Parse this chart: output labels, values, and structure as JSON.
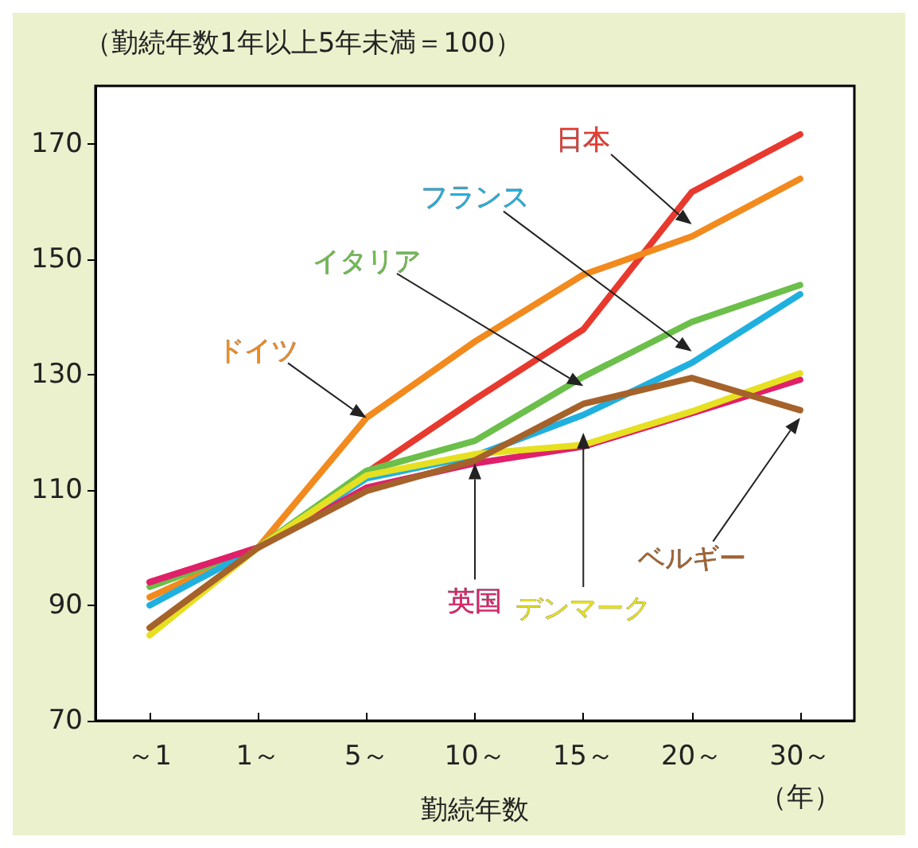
{
  "chart_data": {
    "type": "line",
    "title": "（勤続年数1年以上5年未満＝100）",
    "xlabel": "勤続年数",
    "annotations": [
      "（年）"
    ],
    "categories": [
      "～1",
      "1～",
      "5～",
      "10～",
      "15～",
      "20～",
      "30～"
    ],
    "ylim": [
      70,
      180
    ],
    "yticks": [
      70,
      90,
      110,
      130,
      150,
      170
    ],
    "grid": false,
    "legend": false,
    "marker": "none",
    "line_style": "solid",
    "series": [
      {
        "name": "日本",
        "color": "#e8392e",
        "values": [
          94,
          100,
          113,
          125.7,
          137.8,
          161.6,
          171.6
        ]
      },
      {
        "name": "ドイツ",
        "color": "#f28a1e",
        "values": [
          91.4,
          100,
          122.5,
          135.7,
          147.3,
          153.9,
          163.9
        ]
      },
      {
        "name": "イタリア",
        "color": "#6cbf4a",
        "values": [
          93.2,
          100,
          113.3,
          118.5,
          129.6,
          139.1,
          145.5
        ]
      },
      {
        "name": "フランス",
        "color": "#1fb0e0",
        "values": [
          90,
          100,
          112,
          115.9,
          123,
          132,
          143.9
        ]
      },
      {
        "name": "英国",
        "color": "#e0206a",
        "values": [
          94,
          100,
          110.4,
          114.6,
          117.5,
          123.3,
          129.1
        ]
      },
      {
        "name": "デンマーク",
        "color": "#e6e020",
        "values": [
          84.8,
          100,
          112.5,
          116.2,
          117.8,
          123.6,
          130.2
        ]
      },
      {
        "name": "ベルギー",
        "color": "#a5622a",
        "values": [
          86.1,
          100,
          109.8,
          115.1,
          124.9,
          129.4,
          123.8
        ]
      }
    ]
  }
}
